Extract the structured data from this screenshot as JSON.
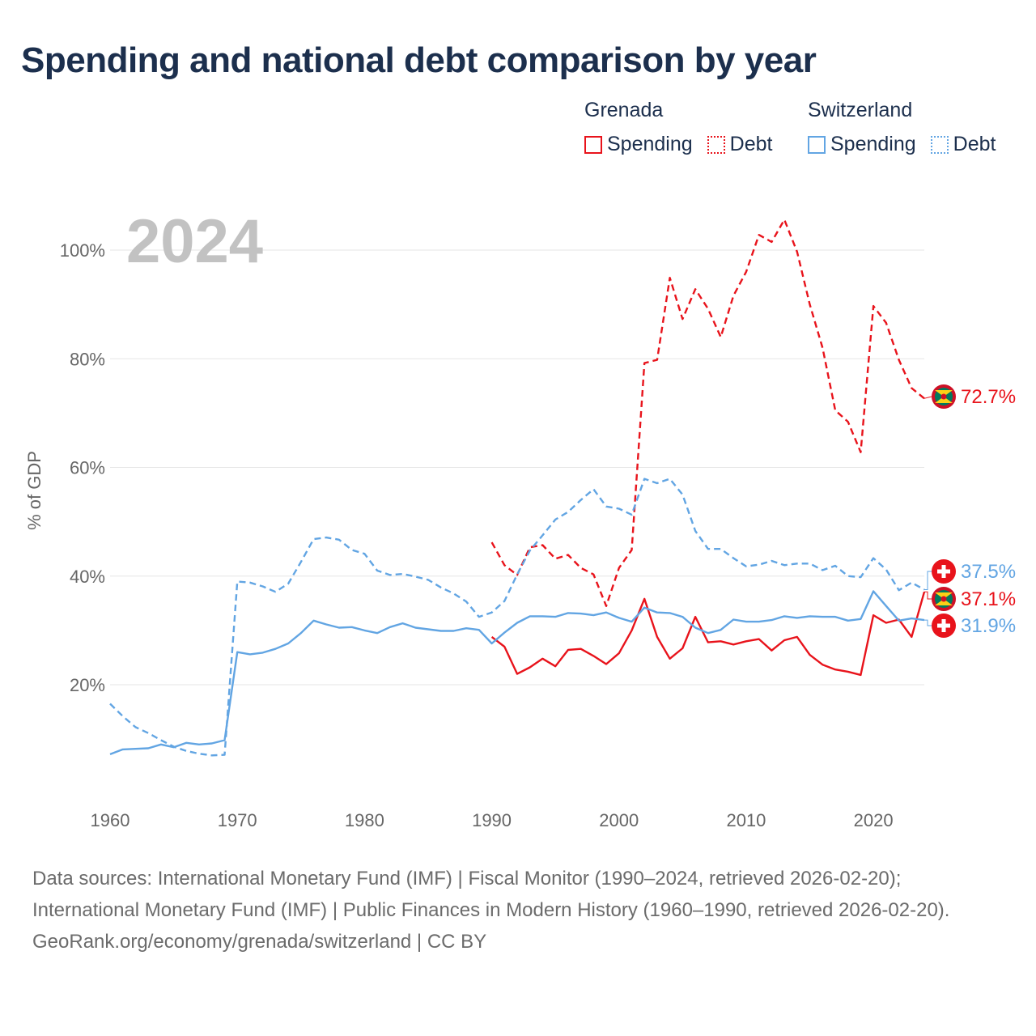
{
  "title": "Spending and national debt comparison by year",
  "legend": {
    "groups": [
      {
        "name": "Grenada",
        "color": "#e8131b",
        "items": [
          "Spending",
          "Debt"
        ]
      },
      {
        "name": "Switzerland",
        "color": "#62a5e3",
        "items": [
          "Spending",
          "Debt"
        ]
      }
    ]
  },
  "source_line1": "Data sources: International Monetary Fund (IMF) | Fiscal Monitor (1990–2024, retrieved 2026-02-20); International Monetary Fund (IMF) | Public Finances in Modern History (1960–1990, retrieved 2026-02-20).",
  "source_line2": "GeoRank.org/economy/grenada/switzerland | CC BY",
  "chart_data": {
    "type": "line",
    "year_label": "2024",
    "ylabel": "% of GDP",
    "xlim": [
      1960,
      2024
    ],
    "ylim": [
      3,
      108
    ],
    "yticks": [
      20,
      40,
      60,
      80,
      100
    ],
    "ytick_labels": [
      "20%",
      "40%",
      "60%",
      "80%",
      "100%"
    ],
    "xticks": [
      1960,
      1970,
      1980,
      1990,
      2000,
      2010,
      2020
    ],
    "xtick_labels": [
      "1960",
      "1970",
      "1980",
      "1990",
      "2000",
      "2010",
      "2020"
    ],
    "grid": true,
    "series": [
      {
        "name": "Grenada Debt",
        "country": "Grenada",
        "metric": "Debt",
        "color": "#e8131b",
        "style": "dashed",
        "start_year": 1990,
        "values": [
          46.2,
          42.0,
          40.2,
          45.3,
          45.7,
          43.2,
          43.9,
          41.5,
          40.3,
          34.5,
          41.5,
          44.8,
          79.2,
          79.8,
          94.9,
          87.3,
          92.8,
          89.2,
          84.0,
          91.6,
          96.0,
          102.8,
          101.5,
          105.6,
          99.7,
          90.0,
          82.0,
          70.5,
          68.4,
          62.8,
          89.7,
          86.6,
          79.8,
          74.6,
          72.7
        ],
        "end_label": "72.7%"
      },
      {
        "name": "Grenada Spending",
        "country": "Grenada",
        "metric": "Spending",
        "color": "#e8131b",
        "style": "solid",
        "start_year": 1990,
        "values": [
          28.8,
          27.0,
          22.0,
          23.2,
          24.8,
          23.4,
          26.4,
          26.6,
          25.3,
          23.8,
          25.8,
          30.0,
          35.8,
          28.8,
          24.8,
          26.7,
          32.5,
          27.8,
          28.0,
          27.4,
          28.0,
          28.4,
          26.3,
          28.2,
          28.8,
          25.5,
          23.7,
          22.8,
          22.4,
          21.8,
          32.8,
          31.4,
          32.0,
          28.8,
          37.1
        ],
        "end_label": "37.1%"
      },
      {
        "name": "Switzerland Debt",
        "country": "Switzerland",
        "metric": "Debt",
        "color": "#62a5e3",
        "style": "dashed",
        "start_year": 1960,
        "values": [
          16.5,
          14.2,
          12.2,
          11.1,
          9.8,
          8.6,
          7.8,
          7.3,
          7.0,
          7.1,
          39.0,
          38.8,
          38.1,
          37.1,
          38.6,
          42.6,
          46.8,
          47.1,
          46.7,
          44.8,
          44.1,
          41.0,
          40.2,
          40.4,
          39.9,
          39.3,
          37.9,
          36.8,
          35.3,
          32.5,
          33.3,
          35.4,
          40.3,
          44.7,
          47.5,
          50.4,
          51.8,
          54.0,
          56.0,
          52.8,
          52.4,
          51.3,
          57.9,
          57.1,
          57.9,
          55.0,
          48.3,
          45.0,
          45.0,
          43.3,
          41.8,
          42.1,
          42.8,
          42.0,
          42.3,
          42.3,
          41.1,
          41.9,
          40.0,
          39.8,
          43.3,
          41.2,
          37.4,
          38.8,
          37.5
        ],
        "end_label": "37.5%"
      },
      {
        "name": "Switzerland Spending",
        "country": "Switzerland",
        "metric": "Spending",
        "color": "#62a5e3",
        "style": "solid",
        "start_year": 1960,
        "values": [
          7.2,
          8.1,
          8.2,
          8.3,
          9.0,
          8.5,
          9.3,
          9.0,
          9.2,
          9.8,
          26.0,
          25.6,
          25.9,
          26.6,
          27.6,
          29.5,
          31.8,
          31.1,
          30.5,
          30.6,
          30.0,
          29.5,
          30.6,
          31.3,
          30.5,
          30.2,
          29.9,
          29.9,
          30.4,
          30.1,
          27.6,
          29.6,
          31.4,
          32.6,
          32.6,
          32.5,
          33.2,
          33.1,
          32.8,
          33.3,
          32.3,
          31.6,
          34.2,
          33.3,
          33.2,
          32.5,
          30.5,
          29.5,
          30.1,
          32.0,
          31.6,
          31.6,
          31.9,
          32.6,
          32.3,
          32.6,
          32.5,
          32.5,
          31.8,
          32.1,
          37.2,
          34.5,
          31.8,
          32.2,
          31.9
        ],
        "end_label": "31.9%"
      }
    ]
  }
}
